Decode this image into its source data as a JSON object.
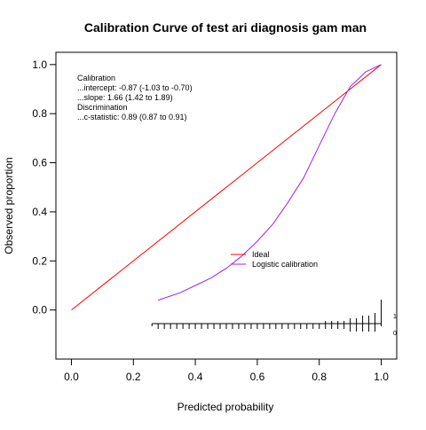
{
  "chart_data": {
    "type": "line",
    "title": "Calibration Curve of test ari diagnosis gam man",
    "xlabel": "Predicted probability",
    "ylabel": "Observed proportion",
    "xlim": [
      -0.05,
      1.05
    ],
    "ylim": [
      -0.2,
      1.05
    ],
    "x_ticks": [
      0.0,
      0.2,
      0.4,
      0.6,
      0.8,
      1.0
    ],
    "x_tick_labels": [
      "0.0",
      "0.2",
      "0.4",
      "0.6",
      "0.8",
      "1.0"
    ],
    "y_ticks": [
      0.0,
      0.2,
      0.4,
      0.6,
      0.8,
      1.0
    ],
    "y_tick_labels": [
      "0.0",
      "0.2",
      "0.4",
      "0.6",
      "0.8",
      "1.0"
    ],
    "grid": false,
    "annotations": [
      "Calibration",
      "...intercept: -0.87 (-1.03 to -0.70)",
      "...slope: 1.66 (1.42 to 1.89)",
      "Discrimination",
      "...c-statistic: 0.89 (0.87 to 0.91)"
    ],
    "legend": {
      "placement": "center-right",
      "entries": [
        {
          "label": "Ideal",
          "color": "#ff0000"
        },
        {
          "label": "Logistic calibration",
          "color": "#a020f0"
        }
      ]
    },
    "series": [
      {
        "name": "Ideal",
        "color": "#ff0000",
        "x": [
          0.0,
          1.0
        ],
        "y": [
          0.0,
          1.0
        ]
      },
      {
        "name": "Logistic calibration",
        "color": "#a020f0",
        "x": [
          0.28,
          0.35,
          0.4,
          0.45,
          0.5,
          0.55,
          0.6,
          0.65,
          0.7,
          0.75,
          0.8,
          0.85,
          0.9,
          0.95,
          1.0
        ],
        "y": [
          0.04,
          0.07,
          0.1,
          0.13,
          0.17,
          0.22,
          0.28,
          0.35,
          0.44,
          0.54,
          0.67,
          0.8,
          0.91,
          0.97,
          1.0
        ]
      }
    ],
    "histogram": {
      "labels": [
        "1",
        "0"
      ],
      "bin_centers": [
        0.26,
        0.28,
        0.3,
        0.32,
        0.34,
        0.36,
        0.38,
        0.4,
        0.42,
        0.44,
        0.46,
        0.48,
        0.5,
        0.52,
        0.54,
        0.56,
        0.58,
        0.6,
        0.62,
        0.64,
        0.66,
        0.68,
        0.7,
        0.72,
        0.74,
        0.76,
        0.78,
        0.8,
        0.82,
        0.84,
        0.86,
        0.88,
        0.9,
        0.92,
        0.94,
        0.96,
        0.98,
        1.0
      ],
      "events_counts": [
        0,
        0,
        0,
        0,
        0,
        0,
        0,
        0,
        0,
        0,
        0,
        0,
        0,
        0,
        0,
        0,
        0,
        0,
        0,
        0,
        0,
        0,
        0,
        0,
        0,
        0,
        0,
        0,
        1,
        1,
        1,
        1,
        2,
        2,
        3,
        3,
        4,
        9
      ],
      "nonevents_counts": [
        1,
        2,
        2,
        2,
        2,
        2,
        2,
        2,
        2,
        2,
        2,
        2,
        2,
        2,
        2,
        2,
        2,
        2,
        2,
        2,
        2,
        2,
        2,
        2,
        2,
        2,
        2,
        2,
        2,
        2,
        2,
        2,
        3,
        3,
        3,
        3,
        3,
        1
      ]
    }
  }
}
